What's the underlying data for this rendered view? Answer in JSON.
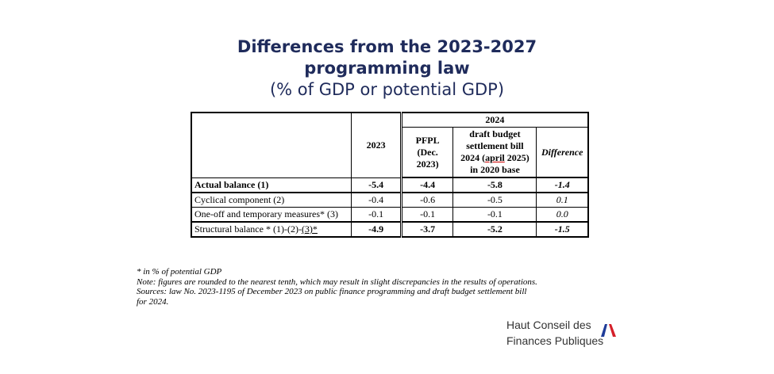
{
  "title": {
    "line1": "Differences from the 2023-2027",
    "line2": "programming law",
    "line3": "(% of GDP or potential GDP)"
  },
  "table": {
    "group_header": "2024",
    "col_2023": "2023",
    "col_pfpl": "PFPL (Dec. 2023)",
    "col_draft_1": "draft budget settlement bill 2024",
    "col_draft_april": "april",
    "col_draft_2": "2025) in 2020 base",
    "col_diff": "Difference",
    "rows": [
      {
        "label": "Actual balance (1)",
        "y2023": "-5.4",
        "pfpl": "-4.4",
        "draft": "-5.8",
        "diff": "-1.4"
      },
      {
        "label": "Cyclical component (2)",
        "y2023": "-0.4",
        "pfpl": "-0.6",
        "draft": "-0.5",
        "diff": "0.1"
      },
      {
        "label": "One-off and temporary measures* (3)",
        "y2023": "-0.1",
        "pfpl": "-0.1",
        "draft": "-0.1",
        "diff": "0.0"
      },
      {
        "label_a": "Structural balance * (1)-(2)-",
        "label_b": "(3)*",
        "y2023": "-4.9",
        "pfpl": "-3.7",
        "draft": "-5.2",
        "diff": "-1.5"
      }
    ]
  },
  "notes": {
    "line1": "* in % of potential GDP",
    "line2": "Note: figures are rounded to the nearest tenth, which may result in slight discrepancies in the results of operations.",
    "line3": "Sources:  law No. 2023-1195 of December 2023 on public finance programming and draft budget settlement bill",
    "line4": "for 2024."
  },
  "logo": {
    "line1": "Haut Conseil des",
    "line2": "Finances Publiques"
  },
  "colors": {
    "title": "#1f2b5b",
    "flag_blue": "#1f3c99",
    "flag_red": "#d5202a"
  }
}
